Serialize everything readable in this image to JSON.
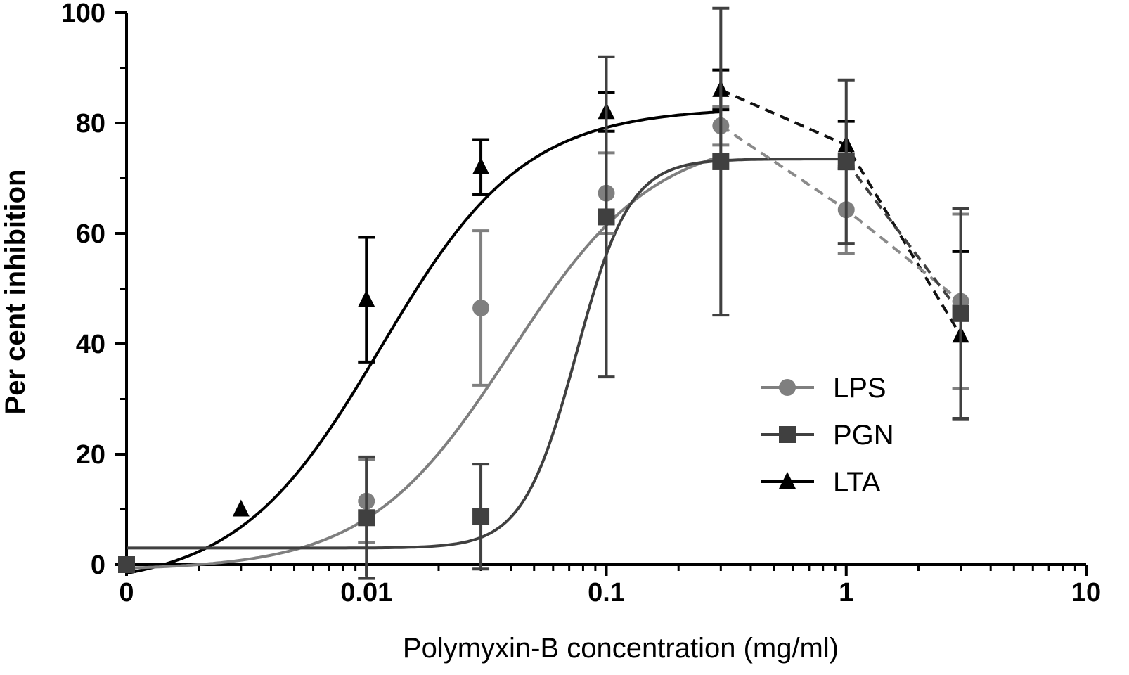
{
  "chart_data": {
    "type": "scatter",
    "title": "",
    "xlabel": "Polymyxin-B concentration (mg/ml)",
    "ylabel": "Per cent inhibition",
    "xscale": "log",
    "xlim": [
      0.001,
      10
    ],
    "ylim": [
      0,
      100
    ],
    "x_ticks": [
      {
        "value": 0.001,
        "label": "0"
      },
      {
        "value": 0.01,
        "label": "0.01"
      },
      {
        "value": 0.1,
        "label": "0.1"
      },
      {
        "value": 1,
        "label": "1"
      },
      {
        "value": 10,
        "label": "10"
      }
    ],
    "y_ticks": [
      0,
      20,
      40,
      60,
      80,
      100
    ],
    "grid": false,
    "legend_position": "right",
    "series": [
      {
        "name": "LTA",
        "marker": "triangle",
        "color": "#000000",
        "dashed_color": "#111111",
        "points": [
          {
            "x": 0.001,
            "y": 0,
            "err": 0
          },
          {
            "x": 0.003,
            "y": 10,
            "err": 0
          },
          {
            "x": 0.01,
            "y": 48,
            "err": 11.3
          },
          {
            "x": 0.03,
            "y": 72,
            "err": 5
          },
          {
            "x": 0.1,
            "y": 82,
            "err": 3.5
          },
          {
            "x": 0.3,
            "y": 86,
            "err": 3.6
          },
          {
            "x": 1,
            "y": 76,
            "err": 4.3
          },
          {
            "x": 3,
            "y": 41.5,
            "err": 15.2
          }
        ],
        "fit": {
          "bottom": -4,
          "top": 82.8,
          "ec50": 0.0115,
          "hill": 1.45,
          "xmax": 0.3
        },
        "dashed_from_index": 5
      },
      {
        "name": "LPS",
        "marker": "circle",
        "color": "#7f7f7f",
        "dashed_color": "#8a8a8a",
        "points": [
          {
            "x": 0.001,
            "y": 0,
            "err": 0
          },
          {
            "x": 0.01,
            "y": 11.5,
            "err": 7.5
          },
          {
            "x": 0.03,
            "y": 46.5,
            "err": 14
          },
          {
            "x": 0.1,
            "y": 67.3,
            "err": 7.3
          },
          {
            "x": 0.3,
            "y": 79.5,
            "err": 3.5
          },
          {
            "x": 1,
            "y": 64.3,
            "err": 7.9
          },
          {
            "x": 3,
            "y": 47.7,
            "err": 15.8
          }
        ],
        "fit": {
          "bottom": -1,
          "top": 78,
          "ec50": 0.04,
          "hill": 1.45,
          "xmax": 0.3
        },
        "dashed_from_index": 4
      },
      {
        "name": "PGN",
        "marker": "square",
        "color": "#404040",
        "dashed_color": "#404040",
        "points": [
          {
            "x": 0.001,
            "y": 0,
            "err": 0
          },
          {
            "x": 0.01,
            "y": 8.5,
            "err": 11
          },
          {
            "x": 0.03,
            "y": 8.7,
            "err": 9.5
          },
          {
            "x": 0.1,
            "y": 63,
            "err": 29
          },
          {
            "x": 0.3,
            "y": 73,
            "err": 27.8
          },
          {
            "x": 1,
            "y": 73,
            "err": 14.8
          },
          {
            "x": 3,
            "y": 45.5,
            "err": 19
          }
        ],
        "fit": {
          "bottom": 3,
          "top": 73.5,
          "ec50": 0.075,
          "hill": 3.9,
          "xmax": 1
        },
        "dashed_from_index": 5
      }
    ],
    "legend_order": [
      "LPS",
      "PGN",
      "LTA"
    ]
  }
}
